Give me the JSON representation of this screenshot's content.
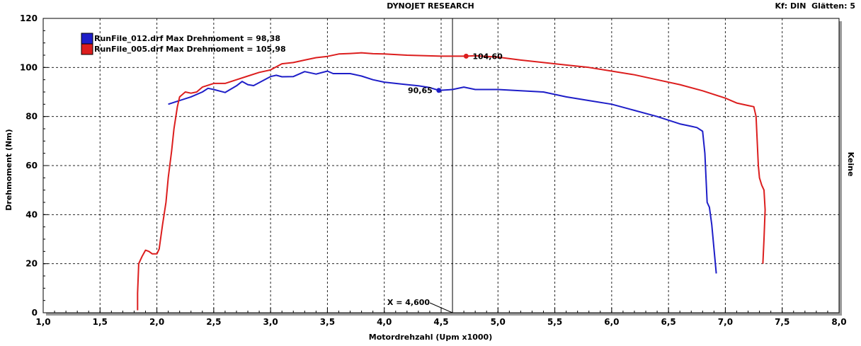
{
  "header": {
    "title": "DYNOJET RESEARCH",
    "info": "Kf: DIN  Glätten: 5",
    "right_side_label": "Keine"
  },
  "chart_data": {
    "type": "line",
    "xlabel": "Motordrehzahl (Upm x1000)",
    "ylabel": "Drehmoment (Nm)",
    "xlim": [
      1.0,
      8.0
    ],
    "ylim": [
      0,
      120
    ],
    "x_ticks": [
      "1,0",
      "1,5",
      "2,0",
      "2,5",
      "3,0",
      "3,5",
      "4,0",
      "4,5",
      "5,0",
      "5,5",
      "6,0",
      "6,5",
      "7,0",
      "7,5",
      "8,0"
    ],
    "y_ticks": [
      "0",
      "20",
      "40",
      "60",
      "80",
      "100",
      "120"
    ],
    "grid": true,
    "legend_position": "top-left",
    "cursor": {
      "x": 4.6,
      "label": "X = 4,600"
    },
    "series": [
      {
        "name": "RunFile_012.drf Max Drehmoment = 98,38",
        "color": "#1e1ec8",
        "marker": {
          "x": 4.48,
          "y": 90.65,
          "label": "90,65"
        },
        "points": [
          [
            2.1,
            85
          ],
          [
            2.2,
            86.5
          ],
          [
            2.3,
            88
          ],
          [
            2.4,
            90
          ],
          [
            2.45,
            91.5
          ],
          [
            2.5,
            91
          ],
          [
            2.6,
            89.8
          ],
          [
            2.7,
            92.5
          ],
          [
            2.75,
            94.3
          ],
          [
            2.8,
            93
          ],
          [
            2.85,
            92.6
          ],
          [
            2.9,
            93.8
          ],
          [
            3.0,
            96.3
          ],
          [
            3.05,
            96.8
          ],
          [
            3.1,
            96.2
          ],
          [
            3.2,
            96.3
          ],
          [
            3.3,
            98.3
          ],
          [
            3.4,
            97.3
          ],
          [
            3.5,
            98.5
          ],
          [
            3.55,
            97.5
          ],
          [
            3.7,
            97.5
          ],
          [
            3.8,
            96.5
          ],
          [
            3.9,
            95
          ],
          [
            4.0,
            94
          ],
          [
            4.1,
            93.5
          ],
          [
            4.2,
            93
          ],
          [
            4.3,
            92.5
          ],
          [
            4.4,
            91.8
          ],
          [
            4.48,
            90.65
          ],
          [
            4.6,
            91
          ],
          [
            4.7,
            92
          ],
          [
            4.8,
            91
          ],
          [
            5.0,
            91
          ],
          [
            5.2,
            90.5
          ],
          [
            5.4,
            90
          ],
          [
            5.6,
            88
          ],
          [
            5.8,
            86.5
          ],
          [
            6.0,
            85
          ],
          [
            6.2,
            82.5
          ],
          [
            6.4,
            80
          ],
          [
            6.6,
            77
          ],
          [
            6.7,
            76
          ],
          [
            6.75,
            75.5
          ],
          [
            6.8,
            74
          ],
          [
            6.82,
            65
          ],
          [
            6.84,
            45
          ],
          [
            6.86,
            43
          ],
          [
            6.88,
            36
          ],
          [
            6.9,
            26
          ],
          [
            6.92,
            16
          ]
        ]
      },
      {
        "name": "RunFile_005.drf Max Drehmoment = 105,98",
        "color": "#dc1e1e",
        "marker": {
          "x": 4.72,
          "y": 104.6,
          "label": "104,60"
        },
        "points": [
          [
            1.83,
            1
          ],
          [
            1.83,
            8
          ],
          [
            1.84,
            20
          ],
          [
            1.87,
            23
          ],
          [
            1.9,
            25.5
          ],
          [
            1.93,
            25
          ],
          [
            1.96,
            24
          ],
          [
            2.0,
            24
          ],
          [
            2.02,
            26
          ],
          [
            2.05,
            36
          ],
          [
            2.08,
            45
          ],
          [
            2.1,
            55
          ],
          [
            2.13,
            66
          ],
          [
            2.15,
            75
          ],
          [
            2.18,
            84
          ],
          [
            2.2,
            88
          ],
          [
            2.25,
            90
          ],
          [
            2.3,
            89.5
          ],
          [
            2.35,
            90
          ],
          [
            2.4,
            92
          ],
          [
            2.5,
            93.5
          ],
          [
            2.6,
            93.5
          ],
          [
            2.7,
            95
          ],
          [
            2.8,
            96.5
          ],
          [
            2.9,
            98
          ],
          [
            3.0,
            99
          ],
          [
            3.1,
            101.5
          ],
          [
            3.2,
            102
          ],
          [
            3.3,
            103
          ],
          [
            3.4,
            104
          ],
          [
            3.5,
            104.5
          ],
          [
            3.6,
            105.5
          ],
          [
            3.7,
            105.7
          ],
          [
            3.8,
            105.98
          ],
          [
            3.9,
            105.6
          ],
          [
            4.0,
            105.5
          ],
          [
            4.2,
            105
          ],
          [
            4.5,
            104.6
          ],
          [
            4.72,
            104.6
          ],
          [
            4.8,
            104.8
          ],
          [
            5.0,
            104.2
          ],
          [
            5.2,
            103
          ],
          [
            5.4,
            102
          ],
          [
            5.6,
            101
          ],
          [
            5.8,
            100
          ],
          [
            6.0,
            98.5
          ],
          [
            6.2,
            97
          ],
          [
            6.4,
            95
          ],
          [
            6.6,
            93
          ],
          [
            6.8,
            90.5
          ],
          [
            7.0,
            87.5
          ],
          [
            7.1,
            85.5
          ],
          [
            7.2,
            84.5
          ],
          [
            7.25,
            84
          ],
          [
            7.27,
            80
          ],
          [
            7.28,
            70
          ],
          [
            7.29,
            60
          ],
          [
            7.3,
            55
          ],
          [
            7.32,
            52
          ],
          [
            7.34,
            50
          ],
          [
            7.35,
            42
          ],
          [
            7.34,
            30
          ],
          [
            7.33,
            20
          ]
        ]
      }
    ]
  }
}
